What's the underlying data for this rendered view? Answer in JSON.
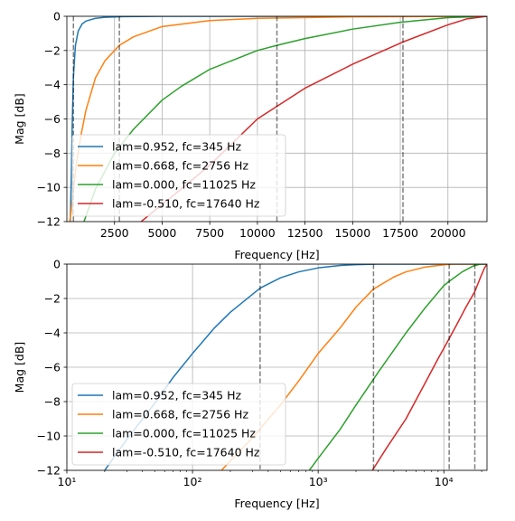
{
  "chart_data": [
    {
      "type": "line",
      "xscale": "linear",
      "xlim": [
        0,
        22050
      ],
      "ylim": [
        -12,
        0
      ],
      "xlabel": "Frequency [Hz]",
      "ylabel": "Mag [dB]",
      "grid": true,
      "xticks": [
        2500,
        5000,
        7500,
        10000,
        12500,
        15000,
        17500,
        20000
      ],
      "xtick_labels": [
        "2500",
        "5000",
        "7500",
        "10000",
        "12500",
        "15000",
        "17500",
        "20000"
      ],
      "yticks": [
        0,
        -2,
        -4,
        -6,
        -8,
        -10,
        -12
      ],
      "ytick_labels": [
        "0",
        "−2",
        "−4",
        "−6",
        "−8",
        "−10",
        "−12"
      ],
      "legend_position": "lower-left",
      "vlines": [
        345,
        2756,
        11025,
        17640
      ],
      "series": [
        {
          "name": "lam=0.952, fc=345 Hz",
          "color": "#1f77b4",
          "fc": 345,
          "points": [
            [
              180,
              -12
            ],
            [
              230,
              -9.6
            ],
            [
              280,
              -6.4
            ],
            [
              345,
              -3.5
            ],
            [
              450,
              -1.7
            ],
            [
              600,
              -0.85
            ],
            [
              800,
              -0.45
            ],
            [
              1000,
              -0.28
            ],
            [
              1500,
              -0.12
            ],
            [
              2000,
              -0.06
            ],
            [
              3000,
              -0.02
            ],
            [
              5000,
              0
            ],
            [
              22050,
              0
            ]
          ]
        },
        {
          "name": "lam=0.668, fc=2756 Hz",
          "color": "#ff7f0e",
          "fc": 2756,
          "points": [
            [
              150,
              -12
            ],
            [
              300,
              -10.6
            ],
            [
              500,
              -8.6
            ],
            [
              750,
              -6.9
            ],
            [
              1000,
              -5.5
            ],
            [
              1500,
              -3.6
            ],
            [
              2000,
              -2.6
            ],
            [
              2756,
              -1.7
            ],
            [
              3500,
              -1.2
            ],
            [
              5000,
              -0.6
            ],
            [
              7500,
              -0.25
            ],
            [
              10000,
              -0.12
            ],
            [
              15000,
              -0.03
            ],
            [
              22050,
              0
            ]
          ]
        },
        {
          "name": "lam=0.000, fc=11025 Hz",
          "color": "#2ca02c",
          "fc": 11025,
          "points": [
            [
              900,
              -12
            ],
            [
              1500,
              -10.1
            ],
            [
              2500,
              -8.0
            ],
            [
              3500,
              -6.6
            ],
            [
              5000,
              -4.9
            ],
            [
              6000,
              -4.1
            ],
            [
              7500,
              -3.1
            ],
            [
              10000,
              -2.0
            ],
            [
              11025,
              -1.7
            ],
            [
              12500,
              -1.3
            ],
            [
              15000,
              -0.75
            ],
            [
              17500,
              -0.35
            ],
            [
              20000,
              -0.08
            ],
            [
              22050,
              0
            ]
          ]
        },
        {
          "name": "lam=-0.510, fc=17640 Hz",
          "color": "#d62728",
          "fc": 17640,
          "points": [
            [
              3900,
              -12
            ],
            [
              5000,
              -11.0
            ],
            [
              6000,
              -10.1
            ],
            [
              7500,
              -8.7
            ],
            [
              10000,
              -6.0
            ],
            [
              12500,
              -4.2
            ],
            [
              15000,
              -2.8
            ],
            [
              17640,
              -1.5
            ],
            [
              20000,
              -0.5
            ],
            [
              21000,
              -0.15
            ],
            [
              22050,
              0
            ]
          ]
        }
      ]
    },
    {
      "type": "line",
      "xscale": "log",
      "xlim": [
        10,
        22050
      ],
      "ylim": [
        -12,
        0
      ],
      "xlabel": "Frequency [Hz]",
      "ylabel": "Mag [dB]",
      "grid": true,
      "xticks": [
        10,
        100,
        1000,
        10000
      ],
      "xtick_labels": [
        "10¹",
        "10²",
        "10³",
        "10⁴"
      ],
      "yticks": [
        0,
        -2,
        -4,
        -6,
        -8,
        -10,
        -12
      ],
      "ytick_labels": [
        "0",
        "−2",
        "−4",
        "−6",
        "−8",
        "−10",
        "−12"
      ],
      "legend_position": "lower-left",
      "vlines": [
        345,
        2756,
        11025,
        17640
      ],
      "series": [
        {
          "name": "lam=0.952, fc=345 Hz",
          "color": "#1f77b4",
          "fc": 345,
          "points": [
            [
              20,
              -12
            ],
            [
              30,
              -10.2
            ],
            [
              50,
              -8.1
            ],
            [
              70,
              -6.6
            ],
            [
              100,
              -5.2
            ],
            [
              150,
              -3.7
            ],
            [
              200,
              -2.8
            ],
            [
              345,
              -1.4
            ],
            [
              500,
              -0.8
            ],
            [
              700,
              -0.45
            ],
            [
              1000,
              -0.22
            ],
            [
              1500,
              -0.08
            ],
            [
              2000,
              -0.03
            ],
            [
              3000,
              0
            ],
            [
              22050,
              0
            ]
          ]
        },
        {
          "name": "lam=0.668, fc=2756 Hz",
          "color": "#ff7f0e",
          "fc": 2756,
          "points": [
            [
              170,
              -12
            ],
            [
              300,
              -10.1
            ],
            [
              500,
              -8.2
            ],
            [
              700,
              -6.8
            ],
            [
              1000,
              -5.2
            ],
            [
              1500,
              -3.7
            ],
            [
              2000,
              -2.5
            ],
            [
              2756,
              -1.45
            ],
            [
              4000,
              -0.75
            ],
            [
              5000,
              -0.45
            ],
            [
              7000,
              -0.18
            ],
            [
              10000,
              -0.04
            ],
            [
              12000,
              0
            ],
            [
              22050,
              0
            ]
          ]
        },
        {
          "name": "lam=0.000, fc=11025 Hz",
          "color": "#2ca02c",
          "fc": 11025,
          "points": [
            [
              850,
              -12
            ],
            [
              1000,
              -11.3
            ],
            [
              1500,
              -9.6
            ],
            [
              2000,
              -8.2
            ],
            [
              3000,
              -6.3
            ],
            [
              5000,
              -4.0
            ],
            [
              7000,
              -2.6
            ],
            [
              10000,
              -1.25
            ],
            [
              11025,
              -1.0
            ],
            [
              14000,
              -0.45
            ],
            [
              17000,
              -0.12
            ],
            [
              19500,
              0
            ],
            [
              22050,
              0
            ]
          ]
        },
        {
          "name": "lam=-0.510, fc=17640 Hz",
          "color": "#d62728",
          "fc": 17640,
          "points": [
            [
              2700,
              -12
            ],
            [
              3500,
              -10.7
            ],
            [
              5000,
              -9.0
            ],
            [
              7000,
              -7.0
            ],
            [
              9000,
              -5.5
            ],
            [
              10000,
              -4.9
            ],
            [
              12500,
              -3.6
            ],
            [
              15000,
              -2.5
            ],
            [
              17640,
              -1.6
            ],
            [
              19500,
              -0.8
            ],
            [
              21000,
              -0.25
            ],
            [
              22050,
              0
            ]
          ]
        }
      ]
    }
  ]
}
